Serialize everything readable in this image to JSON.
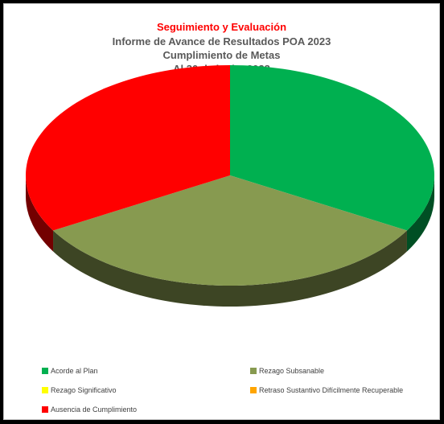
{
  "chart_data": {
    "type": "pie",
    "title": "Seguimiento y Evaluación",
    "subtitle_lines": [
      "Informe de Avance de Resultados POA 2023",
      "Cumplimiento de Metas",
      "Al 30 de junio, 2023"
    ],
    "categories": [
      "Acorde al Plan",
      "Rezago Subsanable",
      "Rezago Significativo",
      "Retraso Sustantivo Difícilmente Recuperable",
      "Ausencia de Cumplimiento"
    ],
    "values": [
      1,
      1,
      0,
      0,
      1
    ],
    "colors": [
      "#00b050",
      "#879a50",
      "#ffff00",
      "#ffa500",
      "#ff0000"
    ],
    "legend_placement": "bottom"
  }
}
